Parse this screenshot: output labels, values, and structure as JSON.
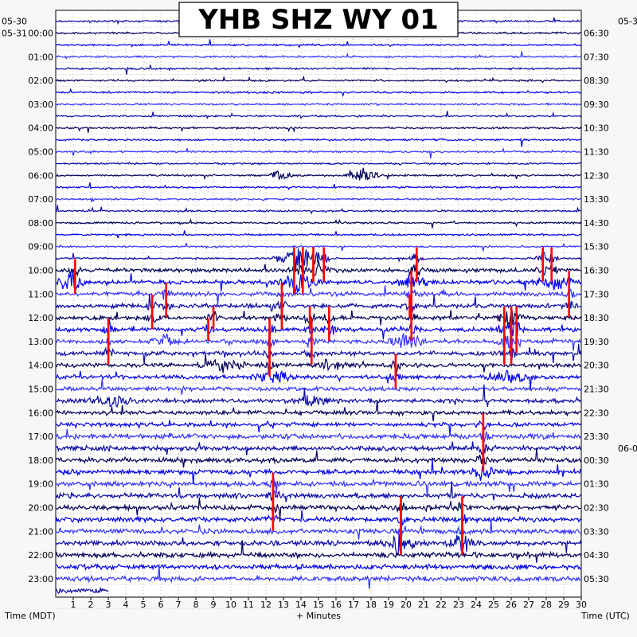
{
  "chart_data": {
    "type": "helicorder",
    "title": "YHB SHZ WY 01",
    "xlabel": "+ Minutes",
    "left_axis_label": "Time (MDT)",
    "right_axis_label": "Time (UTC)",
    "x_ticks": [
      1,
      2,
      3,
      4,
      5,
      6,
      7,
      8,
      9,
      10,
      11,
      12,
      13,
      14,
      15,
      16,
      17,
      18,
      19,
      20,
      21,
      22,
      23,
      24,
      25,
      26,
      27,
      28,
      29,
      30
    ],
    "xlim": [
      0,
      30
    ],
    "left_date_labels": [
      {
        "text": "05-30",
        "at_row": -1
      },
      {
        "text": "05-31",
        "at_row": 0
      }
    ],
    "right_date_labels": [
      {
        "text": "05-3",
        "at_row": -1
      },
      {
        "text": "06-0",
        "at_row": 35
      }
    ],
    "left_time_labels": [
      "00:00",
      "01:00",
      "02:00",
      "03:00",
      "04:00",
      "05:00",
      "06:00",
      "07:00",
      "08:00",
      "09:00",
      "10:00",
      "11:00",
      "12:00",
      "13:00",
      "14:00",
      "15:00",
      "16:00",
      "17:00",
      "18:00",
      "19:00",
      "20:00",
      "21:00",
      "22:00",
      "23:00"
    ],
    "right_time_labels": [
      "06:30",
      "07:30",
      "08:30",
      "09:30",
      "10:30",
      "11:30",
      "12:30",
      "13:30",
      "14:30",
      "15:30",
      "16:30",
      "17:30",
      "18:30",
      "19:30",
      "20:30",
      "21:30",
      "22:30",
      "23:30",
      "00:30",
      "01:30",
      "02:30",
      "03:30",
      "04:30",
      "05:30"
    ],
    "rows_per_hour": 2,
    "minutes_per_row": 30,
    "row_count": 48,
    "trace_colors": [
      "#00005a",
      "#0000ee",
      "#3333ff",
      "#0a0aa8"
    ],
    "event_color": "#ff0000",
    "events": [
      {
        "row": 20,
        "minute": 1.1
      },
      {
        "row": 21,
        "minute": 1.1
      },
      {
        "row": 19,
        "minute": 13.6
      },
      {
        "row": 20,
        "minute": 13.6
      },
      {
        "row": 21,
        "minute": 13.6
      },
      {
        "row": 19,
        "minute": 14.1
      },
      {
        "row": 20,
        "minute": 14.1
      },
      {
        "row": 21,
        "minute": 14.1
      },
      {
        "row": 19,
        "minute": 14.7
      },
      {
        "row": 20,
        "minute": 14.7
      },
      {
        "row": 19,
        "minute": 15.3
      },
      {
        "row": 20,
        "minute": 15.3
      },
      {
        "row": 19,
        "minute": 20.6
      },
      {
        "row": 20,
        "minute": 20.6
      },
      {
        "row": 21,
        "minute": 20.3
      },
      {
        "row": 22,
        "minute": 20.3
      },
      {
        "row": 23,
        "minute": 20.2
      },
      {
        "row": 24,
        "minute": 20.3
      },
      {
        "row": 25,
        "minute": 20.3
      },
      {
        "row": 19,
        "minute": 27.8
      },
      {
        "row": 20,
        "minute": 27.8
      },
      {
        "row": 19,
        "minute": 28.3
      },
      {
        "row": 20,
        "minute": 28.3
      },
      {
        "row": 21,
        "minute": 29.3
      },
      {
        "row": 22,
        "minute": 29.3
      },
      {
        "row": 23,
        "minute": 29.3
      },
      {
        "row": 22,
        "minute": 6.3
      },
      {
        "row": 23,
        "minute": 6.3
      },
      {
        "row": 23,
        "minute": 5.5
      },
      {
        "row": 24,
        "minute": 5.5
      },
      {
        "row": 23,
        "minute": 12.9
      },
      {
        "row": 24,
        "minute": 12.9
      },
      {
        "row": 22,
        "minute": 12.9
      },
      {
        "row": 24,
        "minute": 9.0
      },
      {
        "row": 25,
        "minute": 8.7
      },
      {
        "row": 25,
        "minute": 3.0
      },
      {
        "row": 26,
        "minute": 3.0
      },
      {
        "row": 27,
        "minute": 3.0
      },
      {
        "row": 25,
        "minute": 12.2
      },
      {
        "row": 26,
        "minute": 12.2
      },
      {
        "row": 27,
        "minute": 12.2
      },
      {
        "row": 28,
        "minute": 12.2
      },
      {
        "row": 24,
        "minute": 14.5
      },
      {
        "row": 25,
        "minute": 14.6
      },
      {
        "row": 26,
        "minute": 14.6
      },
      {
        "row": 27,
        "minute": 14.6
      },
      {
        "row": 24,
        "minute": 15.6
      },
      {
        "row": 25,
        "minute": 15.6
      },
      {
        "row": 24,
        "minute": 25.6
      },
      {
        "row": 25,
        "minute": 25.6
      },
      {
        "row": 26,
        "minute": 25.6
      },
      {
        "row": 27,
        "minute": 25.6
      },
      {
        "row": 24,
        "minute": 26.0
      },
      {
        "row": 25,
        "minute": 26.0
      },
      {
        "row": 26,
        "minute": 26.0
      },
      {
        "row": 27,
        "minute": 26.0
      },
      {
        "row": 24,
        "minute": 26.3
      },
      {
        "row": 25,
        "minute": 26.3
      },
      {
        "row": 26,
        "minute": 26.3
      },
      {
        "row": 28,
        "minute": 19.4
      },
      {
        "row": 29,
        "minute": 19.4
      },
      {
        "row": 33,
        "minute": 24.4
      },
      {
        "row": 34,
        "minute": 24.4
      },
      {
        "row": 35,
        "minute": 24.4
      },
      {
        "row": 36,
        "minute": 24.4
      },
      {
        "row": 38,
        "minute": 12.4
      },
      {
        "row": 39,
        "minute": 12.4
      },
      {
        "row": 40,
        "minute": 12.4
      },
      {
        "row": 41,
        "minute": 12.4
      },
      {
        "row": 40,
        "minute": 19.7
      },
      {
        "row": 41,
        "minute": 19.7
      },
      {
        "row": 42,
        "minute": 19.7
      },
      {
        "row": 43,
        "minute": 19.7
      },
      {
        "row": 40,
        "minute": 23.2
      },
      {
        "row": 41,
        "minute": 23.2
      },
      {
        "row": 42,
        "minute": 23.2
      },
      {
        "row": 43,
        "minute": 23.2
      }
    ],
    "bursts": [
      {
        "row": 12,
        "minute": 12.8,
        "width": 0.8
      },
      {
        "row": 12,
        "minute": 17.6,
        "width": 1.2
      },
      {
        "row": 19,
        "minute": 13.8,
        "width": 1.6
      },
      {
        "row": 21,
        "minute": 0.8,
        "width": 1.2
      },
      {
        "row": 21,
        "minute": 13.8,
        "width": 1.6
      },
      {
        "row": 21,
        "minute": 20.3,
        "width": 1.2
      },
      {
        "row": 21,
        "minute": 28.2,
        "width": 1.4
      },
      {
        "row": 26,
        "minute": 6.4,
        "width": 1.2
      },
      {
        "row": 26,
        "minute": 20.0,
        "width": 1.4
      },
      {
        "row": 28,
        "minute": 9.6,
        "width": 1.6
      },
      {
        "row": 28,
        "minute": 15.6,
        "width": 1.0
      },
      {
        "row": 29,
        "minute": 25.8,
        "width": 1.6
      },
      {
        "row": 29,
        "minute": 12.4,
        "width": 1.4
      },
      {
        "row": 31,
        "minute": 3.2,
        "width": 1.6
      },
      {
        "row": 31,
        "minute": 14.6,
        "width": 1.2
      },
      {
        "row": 37,
        "minute": 24.4,
        "width": 1.0
      },
      {
        "row": 43,
        "minute": 19.7,
        "width": 1.4
      },
      {
        "row": 43,
        "minute": 23.2,
        "width": 1.2
      }
    ],
    "final_row_extent_minutes": 3.0,
    "grid": true
  }
}
